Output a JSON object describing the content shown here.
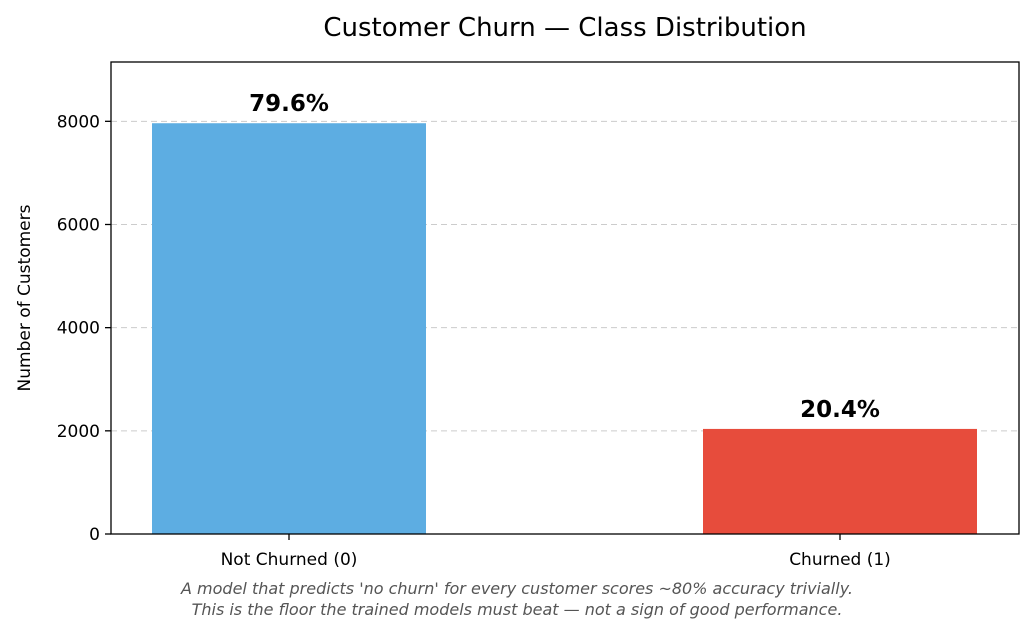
{
  "chart_data": {
    "type": "bar",
    "title": "Customer Churn — Class Distribution",
    "xlabel": "",
    "ylabel": "Number of Customers",
    "categories": [
      "Not Churned (0)",
      "Churned (1)"
    ],
    "values": [
      7963,
      2037
    ],
    "data_labels": [
      "79.6%",
      "20.4%"
    ],
    "colors": [
      "#5dade2",
      "#e74c3c"
    ],
    "ylim": [
      0,
      9150
    ],
    "yticks": [
      0,
      2000,
      4000,
      6000,
      8000
    ],
    "grid": "y-dashed",
    "legend": "none"
  },
  "caption": {
    "line1": "A model that predicts 'no churn' for every customer scores ~80% accuracy trivially.",
    "line2": "This is the floor the trained models must beat — not a sign of good performance."
  }
}
